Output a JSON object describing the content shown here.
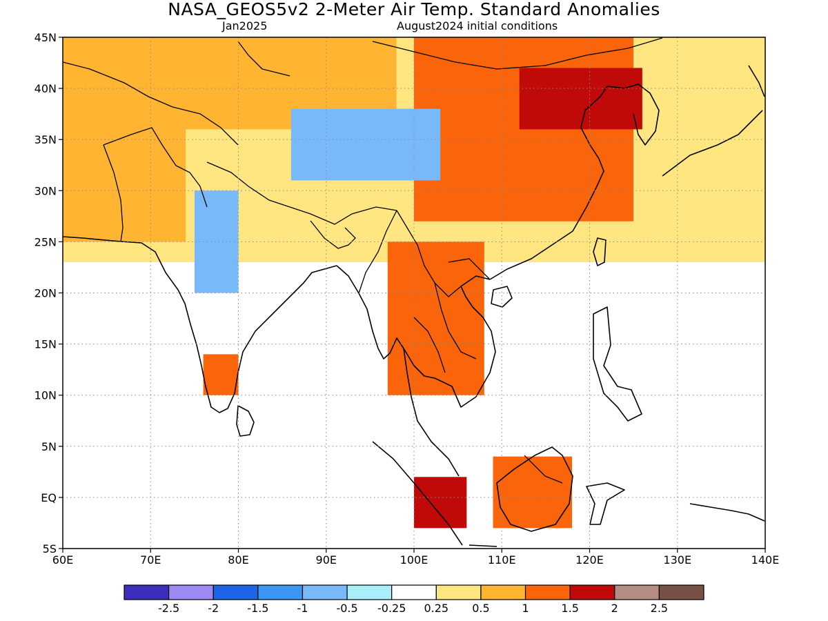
{
  "title": "NASA_GEOS5v2 2-Meter Air Temp. Standard Anomalies",
  "subtitle_left": "Jan2025",
  "subtitle_right": "August2024 initial conditions",
  "map": {
    "lon_range": [
      60,
      140
    ],
    "lat_range": [
      -5,
      45
    ],
    "x_ticks": [
      {
        "value": 60,
        "label": "60E"
      },
      {
        "value": 70,
        "label": "70E"
      },
      {
        "value": 80,
        "label": "80E"
      },
      {
        "value": 90,
        "label": "90E"
      },
      {
        "value": 100,
        "label": "100E"
      },
      {
        "value": 110,
        "label": "110E"
      },
      {
        "value": 120,
        "label": "120E"
      },
      {
        "value": 130,
        "label": "130E"
      },
      {
        "value": 140,
        "label": "140E"
      }
    ],
    "y_ticks": [
      {
        "value": 45,
        "label": "45N"
      },
      {
        "value": 40,
        "label": "40N"
      },
      {
        "value": 35,
        "label": "35N"
      },
      {
        "value": 30,
        "label": "30N"
      },
      {
        "value": 25,
        "label": "25N"
      },
      {
        "value": 20,
        "label": "20N"
      },
      {
        "value": 15,
        "label": "15N"
      },
      {
        "value": 10,
        "label": "10N"
      },
      {
        "value": 5,
        "label": "5N"
      },
      {
        "value": 0,
        "label": "EQ"
      },
      {
        "value": -5,
        "label": "5S"
      }
    ],
    "gridlines": true
  },
  "colorbar": {
    "colors": [
      "#3c2dbb",
      "#9d89f2",
      "#1e64e6",
      "#3c96f4",
      "#78b9fa",
      "#aaeefa",
      "#ffffff",
      "#ffe680",
      "#ffb432",
      "#fa640a",
      "#c00a0a",
      "#b48c82",
      "#785046"
    ],
    "labels": [
      "-2.5",
      "-2",
      "-1.5",
      "-1",
      "-0.5",
      "-0.25",
      "0.25",
      "0.5",
      "1",
      "1.5",
      "2",
      "2.5"
    ]
  },
  "anomaly_regions": [
    {
      "level": "0.5",
      "color": "#ffe680",
      "lon": [
        60,
        140
      ],
      "lat": [
        23,
        45
      ]
    },
    {
      "level": "0.5",
      "color": "#ffb432",
      "lon": [
        60,
        98
      ],
      "lat": [
        36,
        45
      ]
    },
    {
      "level": "0.5",
      "color": "#ffb432",
      "lon": [
        60,
        74
      ],
      "lat": [
        25,
        38
      ]
    },
    {
      "level": "1",
      "color": "#fa640a",
      "lon": [
        100,
        125
      ],
      "lat": [
        27,
        45
      ]
    },
    {
      "level": "1.5",
      "color": "#c00a0a",
      "lon": [
        112,
        126
      ],
      "lat": [
        36,
        42
      ]
    },
    {
      "level": "-0.5",
      "color": "#78b9fa",
      "lon": [
        86,
        103
      ],
      "lat": [
        31,
        38
      ]
    },
    {
      "level": "-0.5",
      "color": "#78b9fa",
      "lon": [
        75,
        80
      ],
      "lat": [
        20,
        30
      ]
    },
    {
      "level": "1",
      "color": "#fa640a",
      "lon": [
        76,
        80
      ],
      "lat": [
        10,
        14
      ]
    },
    {
      "level": "1",
      "color": "#fa640a",
      "lon": [
        97,
        108
      ],
      "lat": [
        10,
        25
      ]
    },
    {
      "level": "1",
      "color": "#fa640a",
      "lon": [
        109,
        118
      ],
      "lat": [
        -3,
        4
      ]
    },
    {
      "level": "1.5",
      "color": "#c00a0a",
      "lon": [
        100,
        106
      ],
      "lat": [
        -3,
        2
      ]
    }
  ]
}
